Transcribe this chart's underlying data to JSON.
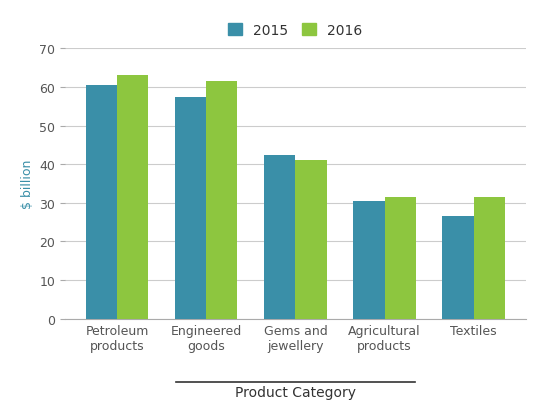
{
  "categories": [
    "Petroleum\nproducts",
    "Engineered\ngoods",
    "Gems and\njewellery",
    "Agricultural\nproducts",
    "Textiles"
  ],
  "values_2015": [
    60.5,
    57.5,
    42.5,
    30.5,
    26.5
  ],
  "values_2016": [
    63.0,
    61.5,
    41.0,
    31.5,
    31.5
  ],
  "color_2015": "#3a8fa8",
  "color_2016": "#8dc63f",
  "ylabel": "$ billion",
  "xlabel": "Product Category",
  "ylim": [
    0,
    70
  ],
  "yticks": [
    0,
    10,
    20,
    30,
    40,
    50,
    60,
    70
  ],
  "legend_labels": [
    "2015",
    "2016"
  ],
  "bar_width": 0.35,
  "background_color": "#ffffff",
  "grid_color": "#cccccc",
  "ylabel_color": "#3a8fa8",
  "xlabel_color": "#333333",
  "tick_color": "#555555",
  "spine_color": "#aaaaaa"
}
